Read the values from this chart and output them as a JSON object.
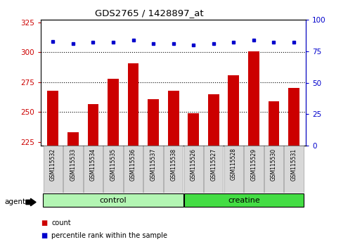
{
  "title": "GDS2765 / 1428897_at",
  "categories": [
    "GSM115532",
    "GSM115533",
    "GSM115534",
    "GSM115535",
    "GSM115536",
    "GSM115537",
    "GSM115538",
    "GSM115526",
    "GSM115527",
    "GSM115528",
    "GSM115529",
    "GSM115530",
    "GSM115531"
  ],
  "counts": [
    268,
    233,
    257,
    278,
    291,
    261,
    268,
    249,
    265,
    281,
    301,
    259,
    270
  ],
  "percentiles": [
    83,
    81,
    82,
    82,
    84,
    81,
    81,
    80,
    81,
    82,
    84,
    82,
    82
  ],
  "groups": [
    "control",
    "control",
    "control",
    "control",
    "control",
    "control",
    "control",
    "creatine",
    "creatine",
    "creatine",
    "creatine",
    "creatine",
    "creatine"
  ],
  "group_colors": {
    "control": "#b3f5b3",
    "creatine": "#44dd44"
  },
  "bar_color": "#cc0000",
  "dot_color": "#0000cc",
  "ylim_left": [
    222,
    327
  ],
  "ylim_right": [
    0,
    100
  ],
  "yticks_left": [
    225,
    250,
    275,
    300,
    325
  ],
  "yticks_right": [
    0,
    25,
    50,
    75,
    100
  ],
  "left_axis_color": "#cc0000",
  "right_axis_color": "#0000cc",
  "background_color": "#ffffff",
  "agent_label": "agent",
  "legend_count_label": "count",
  "legend_pct_label": "percentile rank within the sample",
  "n_control": 7,
  "n_creatine": 6
}
